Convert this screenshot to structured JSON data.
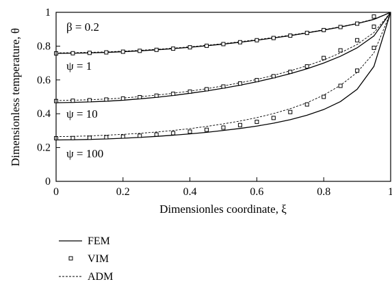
{
  "chart_data": {
    "type": "line",
    "xlabel": "Dimensionles coordinate, ξ",
    "ylabel": "Dimensionless temperature, θ",
    "xlim": [
      0,
      1
    ],
    "ylim": [
      0,
      1
    ],
    "xticks": [
      "0",
      "0.2",
      "0.4",
      "0.6",
      "0.8",
      "1"
    ],
    "yticks": [
      "0",
      "0.2",
      "0.4",
      "0.6",
      "0.8",
      "1"
    ],
    "grid": false,
    "annotations": {
      "beta": "β =   0.2",
      "psi1": "ψ = 1",
      "psi10": "ψ = 10",
      "psi100": "ψ = 100"
    },
    "legend": {
      "placement": "bottom-left",
      "fem": "FEM",
      "vim": "VIM",
      "adm": "ADM"
    },
    "series": [
      {
        "name": "FEM",
        "group": "psi=1",
        "style": "solid",
        "x": [
          0,
          0.05,
          0.1,
          0.15,
          0.2,
          0.25,
          0.3,
          0.35,
          0.4,
          0.45,
          0.5,
          0.55,
          0.6,
          0.65,
          0.7,
          0.75,
          0.8,
          0.85,
          0.9,
          0.95,
          1.0
        ],
        "y": [
          0.757,
          0.758,
          0.76,
          0.763,
          0.767,
          0.772,
          0.778,
          0.785,
          0.793,
          0.802,
          0.812,
          0.823,
          0.835,
          0.848,
          0.862,
          0.878,
          0.895,
          0.913,
          0.933,
          0.958,
          1.0
        ]
      },
      {
        "name": "ADM",
        "group": "psi=1",
        "style": "dashed",
        "x": [
          0,
          0.05,
          0.1,
          0.15,
          0.2,
          0.25,
          0.3,
          0.35,
          0.4,
          0.45,
          0.5,
          0.55,
          0.6,
          0.65,
          0.7,
          0.75,
          0.8,
          0.85,
          0.9,
          0.95,
          1.0
        ],
        "y": [
          0.76,
          0.761,
          0.763,
          0.766,
          0.77,
          0.775,
          0.781,
          0.788,
          0.796,
          0.805,
          0.815,
          0.826,
          0.838,
          0.851,
          0.865,
          0.88,
          0.897,
          0.915,
          0.935,
          0.96,
          1.0
        ]
      },
      {
        "name": "VIM",
        "group": "psi=1",
        "style": "markers",
        "x": [
          0,
          0.05,
          0.1,
          0.15,
          0.2,
          0.25,
          0.3,
          0.35,
          0.4,
          0.45,
          0.5,
          0.55,
          0.6,
          0.65,
          0.7,
          0.75,
          0.8,
          0.85,
          0.9,
          0.95
        ],
        "y": [
          0.757,
          0.758,
          0.76,
          0.763,
          0.767,
          0.772,
          0.778,
          0.785,
          0.793,
          0.802,
          0.812,
          0.823,
          0.835,
          0.848,
          0.862,
          0.878,
          0.895,
          0.913,
          0.933,
          0.975
        ]
      },
      {
        "name": "FEM",
        "group": "psi=10",
        "style": "solid",
        "x": [
          0,
          0.05,
          0.1,
          0.15,
          0.2,
          0.25,
          0.3,
          0.35,
          0.4,
          0.45,
          0.5,
          0.55,
          0.6,
          0.65,
          0.7,
          0.75,
          0.8,
          0.85,
          0.9,
          0.95,
          1.0
        ],
        "y": [
          0.465,
          0.467,
          0.47,
          0.474,
          0.48,
          0.488,
          0.497,
          0.508,
          0.521,
          0.535,
          0.551,
          0.569,
          0.589,
          0.612,
          0.637,
          0.666,
          0.7,
          0.74,
          0.79,
          0.86,
          1.0
        ]
      },
      {
        "name": "ADM",
        "group": "psi=10",
        "style": "dashed",
        "x": [
          0,
          0.05,
          0.1,
          0.15,
          0.2,
          0.25,
          0.3,
          0.35,
          0.4,
          0.45,
          0.5,
          0.55,
          0.6,
          0.65,
          0.7,
          0.75,
          0.8,
          0.85,
          0.9,
          0.95,
          1.0
        ],
        "y": [
          0.478,
          0.48,
          0.483,
          0.487,
          0.493,
          0.501,
          0.51,
          0.521,
          0.534,
          0.548,
          0.565,
          0.583,
          0.603,
          0.627,
          0.654,
          0.684,
          0.718,
          0.76,
          0.81,
          0.88,
          1.0
        ]
      },
      {
        "name": "VIM",
        "group": "psi=10",
        "style": "markers",
        "x": [
          0,
          0.05,
          0.1,
          0.15,
          0.2,
          0.25,
          0.3,
          0.35,
          0.4,
          0.45,
          0.5,
          0.55,
          0.6,
          0.65,
          0.7,
          0.75,
          0.8,
          0.85,
          0.9,
          0.95
        ],
        "y": [
          0.475,
          0.477,
          0.48,
          0.484,
          0.49,
          0.498,
          0.507,
          0.518,
          0.531,
          0.545,
          0.561,
          0.579,
          0.599,
          0.622,
          0.648,
          0.68,
          0.73,
          0.775,
          0.835,
          0.915
        ]
      },
      {
        "name": "FEM",
        "group": "psi=100",
        "style": "solid",
        "x": [
          0,
          0.05,
          0.1,
          0.15,
          0.2,
          0.25,
          0.3,
          0.35,
          0.4,
          0.45,
          0.5,
          0.55,
          0.6,
          0.65,
          0.7,
          0.75,
          0.8,
          0.85,
          0.9,
          0.95,
          1.0
        ],
        "y": [
          0.245,
          0.246,
          0.248,
          0.251,
          0.255,
          0.26,
          0.266,
          0.273,
          0.281,
          0.29,
          0.301,
          0.313,
          0.327,
          0.344,
          0.365,
          0.391,
          0.425,
          0.472,
          0.545,
          0.68,
          1.0
        ]
      },
      {
        "name": "ADM",
        "group": "psi=100",
        "style": "dashed",
        "x": [
          0,
          0.05,
          0.1,
          0.15,
          0.2,
          0.25,
          0.3,
          0.35,
          0.4,
          0.45,
          0.5,
          0.55,
          0.6,
          0.65,
          0.7,
          0.75,
          0.8,
          0.85,
          0.9,
          0.95,
          1.0
        ],
        "y": [
          0.265,
          0.266,
          0.269,
          0.273,
          0.278,
          0.284,
          0.292,
          0.301,
          0.312,
          0.325,
          0.34,
          0.357,
          0.377,
          0.401,
          0.43,
          0.465,
          0.51,
          0.568,
          0.645,
          0.76,
          1.0
        ]
      },
      {
        "name": "VIM",
        "group": "psi=100",
        "style": "markers",
        "x": [
          0,
          0.05,
          0.1,
          0.15,
          0.2,
          0.25,
          0.3,
          0.35,
          0.4,
          0.45,
          0.5,
          0.55,
          0.6,
          0.65,
          0.7,
          0.75,
          0.8,
          0.85,
          0.9,
          0.95
        ],
        "y": [
          0.255,
          0.256,
          0.258,
          0.261,
          0.265,
          0.27,
          0.277,
          0.285,
          0.294,
          0.305,
          0.318,
          0.333,
          0.352,
          0.375,
          0.41,
          0.455,
          0.5,
          0.565,
          0.655,
          0.79
        ]
      }
    ]
  }
}
